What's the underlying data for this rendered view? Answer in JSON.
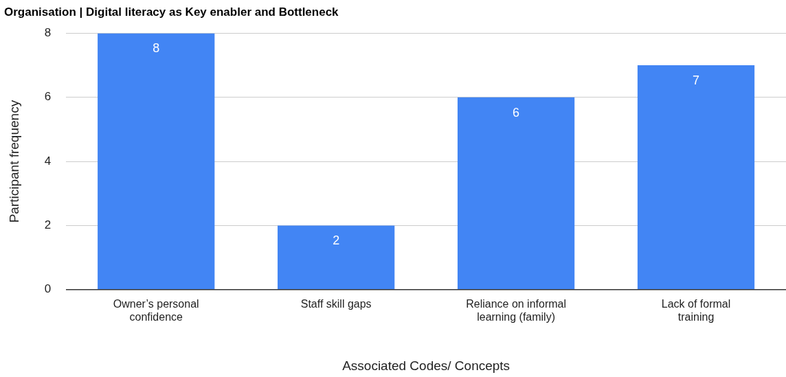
{
  "chart_data": {
    "type": "bar",
    "title": "Organisation | Digital literacy as Key enabler and Bottleneck",
    "xlabel": "Associated Codes/ Concepts",
    "ylabel": "Participant frequency",
    "categories": [
      "Owner’s personal confidence",
      "Staff skill gaps",
      "Reliance on informal learning (family)",
      "Lack of formal training"
    ],
    "values": [
      8,
      2,
      6,
      7
    ],
    "color": "#4285f4",
    "ylim": [
      0,
      8
    ],
    "yticks": [
      0,
      2,
      4,
      6,
      8
    ],
    "grid": "y",
    "data_labels": true,
    "legend": false
  }
}
